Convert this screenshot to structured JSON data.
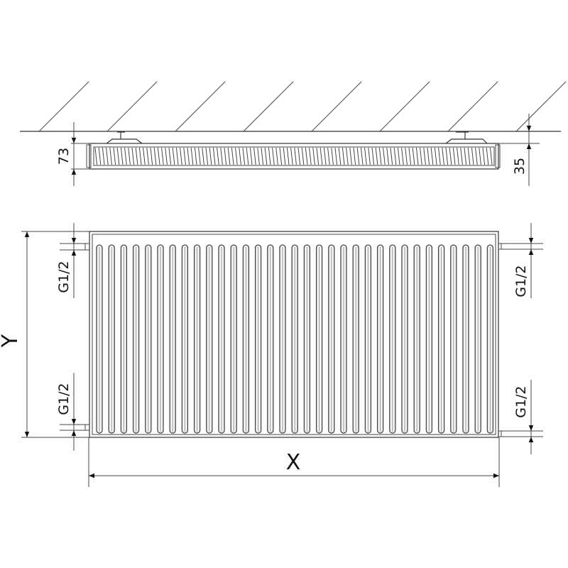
{
  "dimensions": {
    "depth_total": "73",
    "wall_gap": "35",
    "height": "Y",
    "width": "X",
    "connection_top_left": "G1/2",
    "connection_bottom_left": "G1/2",
    "connection_top_right": "G1/2",
    "connection_bottom_right": "G1/2"
  },
  "colors": {
    "line": "#333333",
    "background": "#ffffff"
  }
}
